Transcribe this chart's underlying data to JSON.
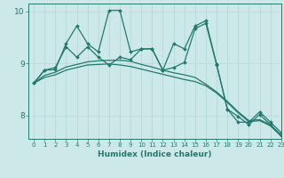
{
  "xlabel": "Humidex (Indice chaleur)",
  "xlim": [
    -0.5,
    23
  ],
  "ylim": [
    7.55,
    10.15
  ],
  "yticks": [
    8,
    9,
    10
  ],
  "xticks": [
    0,
    1,
    2,
    3,
    4,
    5,
    6,
    7,
    8,
    9,
    10,
    11,
    12,
    13,
    14,
    15,
    16,
    17,
    18,
    19,
    20,
    21,
    22,
    23
  ],
  "bg_color": "#cce8e8",
  "grid_color_v": "#b0d8d8",
  "grid_color_h": "#b8dada",
  "line_color": "#217a6e",
  "line1_x": [
    0,
    1,
    2,
    3,
    4,
    5,
    6,
    7,
    8,
    9,
    10,
    11,
    12,
    13,
    14,
    15,
    16,
    17,
    18,
    19,
    20,
    21,
    22,
    23
  ],
  "line1_y": [
    8.62,
    8.87,
    8.88,
    9.38,
    9.72,
    9.38,
    9.22,
    10.02,
    10.02,
    9.22,
    9.28,
    9.28,
    8.87,
    9.38,
    9.28,
    9.72,
    9.82,
    8.98,
    8.12,
    7.98,
    7.82,
    8.02,
    7.82,
    7.62
  ],
  "line2_x": [
    0,
    1,
    2,
    3,
    4,
    5,
    6,
    7,
    8,
    9,
    10,
    11,
    12,
    13,
    14,
    15,
    16,
    17,
    18,
    19,
    20,
    21,
    22,
    23
  ],
  "line2_y": [
    8.62,
    8.87,
    8.92,
    9.32,
    9.12,
    9.32,
    9.12,
    8.97,
    9.12,
    9.07,
    9.28,
    9.28,
    8.87,
    8.92,
    9.02,
    9.67,
    9.77,
    8.97,
    8.12,
    7.87,
    7.87,
    8.07,
    7.87,
    7.67
  ],
  "line3_x": [
    0,
    1,
    2,
    3,
    4,
    5,
    6,
    7,
    8,
    9,
    10,
    11,
    12,
    13,
    14,
    15,
    16,
    17,
    18,
    19,
    20,
    21,
    22,
    23
  ],
  "line3_y": [
    8.62,
    8.77,
    8.83,
    8.93,
    8.98,
    9.03,
    9.05,
    9.06,
    9.06,
    9.04,
    8.98,
    8.93,
    8.87,
    8.82,
    8.78,
    8.73,
    8.6,
    8.45,
    8.27,
    8.07,
    7.9,
    7.92,
    7.82,
    7.62
  ],
  "line4_x": [
    0,
    1,
    2,
    3,
    4,
    5,
    6,
    7,
    8,
    9,
    10,
    11,
    12,
    13,
    14,
    15,
    16,
    17,
    18,
    19,
    20,
    21,
    22,
    23
  ],
  "line4_y": [
    8.62,
    8.73,
    8.78,
    8.87,
    8.92,
    8.97,
    8.98,
    8.99,
    8.97,
    8.94,
    8.89,
    8.84,
    8.79,
    8.74,
    8.69,
    8.65,
    8.57,
    8.43,
    8.25,
    8.05,
    7.88,
    7.9,
    7.8,
    7.6
  ]
}
